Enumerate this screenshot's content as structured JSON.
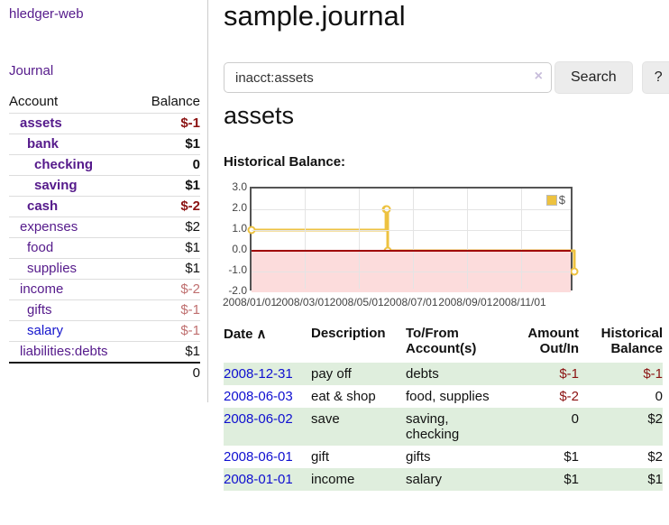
{
  "colors": {
    "link_purple": "#551a8b",
    "link_blue": "#1414cc",
    "date_link_blue": "#0f0fd0",
    "neg_strong": "#8b1212",
    "neg_soft": "#bf6f6f",
    "text_black": "#111111",
    "stripe_green": "#dfeedd",
    "series_yellow": "#edc240",
    "neg_region_pink": "#fcdcdc",
    "zero_line_red": "#a00000",
    "grid_gray": "#e4e4e4",
    "plot_border": "#545454"
  },
  "app": {
    "brand": "hledger-web",
    "nav_journal": "Journal"
  },
  "sidebar": {
    "header": {
      "account": "Account",
      "balance": "Balance"
    },
    "accounts": [
      {
        "name": "assets",
        "balance": "$-1",
        "depth": 0,
        "bold": true,
        "link_color": "purple",
        "balance_type": "neg_strong"
      },
      {
        "name": "bank",
        "balance": "$1",
        "depth": 1,
        "bold": true,
        "link_color": "purple",
        "balance_type": "black"
      },
      {
        "name": "checking",
        "balance": "0",
        "depth": 2,
        "bold": true,
        "link_color": "purple",
        "balance_type": "black"
      },
      {
        "name": "saving",
        "balance": "$1",
        "depth": 2,
        "bold": true,
        "link_color": "purple",
        "balance_type": "black"
      },
      {
        "name": "cash",
        "balance": "$-2",
        "depth": 1,
        "bold": true,
        "link_color": "purple",
        "balance_type": "neg_strong"
      },
      {
        "name": "expenses",
        "balance": "$2",
        "depth": 0,
        "bold": false,
        "link_color": "purple",
        "balance_type": "black"
      },
      {
        "name": "food",
        "balance": "$1",
        "depth": 1,
        "bold": false,
        "link_color": "purple",
        "balance_type": "black"
      },
      {
        "name": "supplies",
        "balance": "$1",
        "depth": 1,
        "bold": false,
        "link_color": "purple",
        "balance_type": "black"
      },
      {
        "name": "income",
        "balance": "$-2",
        "depth": 0,
        "bold": false,
        "link_color": "purple",
        "balance_type": "neg_soft"
      },
      {
        "name": "gifts",
        "balance": "$-1",
        "depth": 1,
        "bold": false,
        "link_color": "purple",
        "balance_type": "neg_soft"
      },
      {
        "name": "salary",
        "balance": "$-1",
        "depth": 1,
        "bold": false,
        "link_color": "blue",
        "balance_type": "neg_soft"
      },
      {
        "name": "liabilities:debts",
        "balance": "$1",
        "depth": 0,
        "bold": false,
        "link_color": "purple",
        "balance_type": "black"
      }
    ],
    "total": "0"
  },
  "header": {
    "title": "sample.journal"
  },
  "search": {
    "value": "inacct:assets",
    "clear_icon": "×",
    "button_label": "Search",
    "help_label": "?"
  },
  "account_page": {
    "heading": "assets",
    "chart_label": "Historical Balance:"
  },
  "chart_data": {
    "type": "line",
    "title": "Historical Balance",
    "step": true,
    "series": [
      {
        "name": "$",
        "points": [
          [
            "2008-01-01",
            1
          ],
          [
            "2008-06-01",
            2
          ],
          [
            "2008-06-02",
            2
          ],
          [
            "2008-06-03",
            0
          ],
          [
            "2008-12-31",
            -1
          ]
        ]
      }
    ],
    "xlim": [
      "2008-01-01",
      "2008-12-31"
    ],
    "ylim": [
      -2,
      3
    ],
    "yticks": [
      3.0,
      2.0,
      1.0,
      0.0,
      -1.0,
      -2.0
    ],
    "xticks": [
      "2008/01/01",
      "2008/03/01",
      "2008/05/01",
      "2008/07/01",
      "2008/09/01",
      "2008/11/01"
    ],
    "grid": true,
    "legend_position": "top-right",
    "negative_region": true
  },
  "transactions": {
    "headers": {
      "date": "Date",
      "sort_icon": "∧",
      "description": "Description",
      "accounts": "To/From Account(s)",
      "amount": "Amount Out/In",
      "balance": "Historical Balance"
    },
    "rows": [
      {
        "date": "2008-12-31",
        "description": "pay off",
        "accounts": "debts",
        "amount": "$-1",
        "amount_neg": true,
        "balance": "$-1",
        "balance_neg": true,
        "green": true
      },
      {
        "date": "2008-06-03",
        "description": "eat & shop",
        "accounts": "food, supplies",
        "amount": "$-2",
        "amount_neg": true,
        "balance": "0",
        "balance_neg": false,
        "green": false
      },
      {
        "date": "2008-06-02",
        "description": "save",
        "accounts": "saving, checking",
        "amount": "0",
        "amount_neg": false,
        "balance": "$2",
        "balance_neg": false,
        "green": true
      },
      {
        "date": "2008-06-01",
        "description": "gift",
        "accounts": "gifts",
        "amount": "$1",
        "amount_neg": false,
        "balance": "$2",
        "balance_neg": false,
        "green": false
      },
      {
        "date": "2008-01-01",
        "description": "income",
        "accounts": "salary",
        "amount": "$1",
        "amount_neg": false,
        "balance": "$1",
        "balance_neg": false,
        "green": true
      }
    ]
  }
}
